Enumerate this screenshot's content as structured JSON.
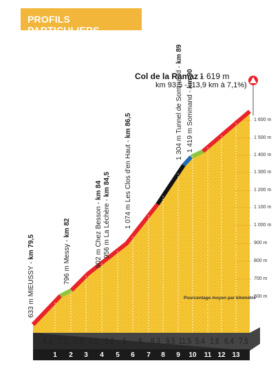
{
  "badge": "PROFILS PARTICULIERS",
  "summit": {
    "name": "Col de la Ramaz -",
    "altitude": "1 619 m",
    "km_info": "km 93,5 - (13,9 km à 7,1%)",
    "icon": "mountain-icon",
    "icon_color": "#e8232a"
  },
  "waypoints": [
    {
      "alt": "633 m",
      "name": "MIEUSSY",
      "km": "km 79,5"
    },
    {
      "alt": "796 m",
      "name": "Messy",
      "km": "km 82"
    },
    {
      "alt": "902 m",
      "name": "Chez Besson",
      "km": "km 84"
    },
    {
      "alt": "956 m",
      "name": "La Léchère",
      "km": "km 84,5"
    },
    {
      "alt": "1 074 m",
      "name": "Les Clos d'en Haut",
      "km": "km 86,5"
    },
    {
      "alt": "1 304 m",
      "name": "Tunnel de Sommand",
      "km": "km 89"
    },
    {
      "alt": "1 419 m",
      "name": "Sommand",
      "km": "km 90"
    }
  ],
  "altitude_ticks": [
    "1 600 m",
    "1 500 m",
    "1 400 m",
    "1 300 m",
    "1 200 m",
    "1 100 m",
    "1 000 m",
    "900 m",
    "800 m",
    "700 m",
    "600 m"
  ],
  "note": "Pourcentage moyen par kilomètre",
  "grades": [
    "8,4",
    "7,2",
    "2,3",
    "7,2",
    "6,6",
    "6",
    "8",
    "8,3",
    "9,5",
    "11,5",
    "5,4",
    "1,6",
    "6,4",
    "7,5"
  ],
  "km_markers": [
    "1",
    "2",
    "3",
    "4",
    "5",
    "6",
    "7",
    "8",
    "9",
    "10",
    "11",
    "12",
    "13"
  ],
  "colors": {
    "badge": "#f2b63a",
    "terrain": "#f4c431",
    "road_red": "#e8232a",
    "road_green": "#8cc63f",
    "road_blue": "#1f6bb5",
    "road_black": "#111111",
    "base": "#222222"
  }
}
